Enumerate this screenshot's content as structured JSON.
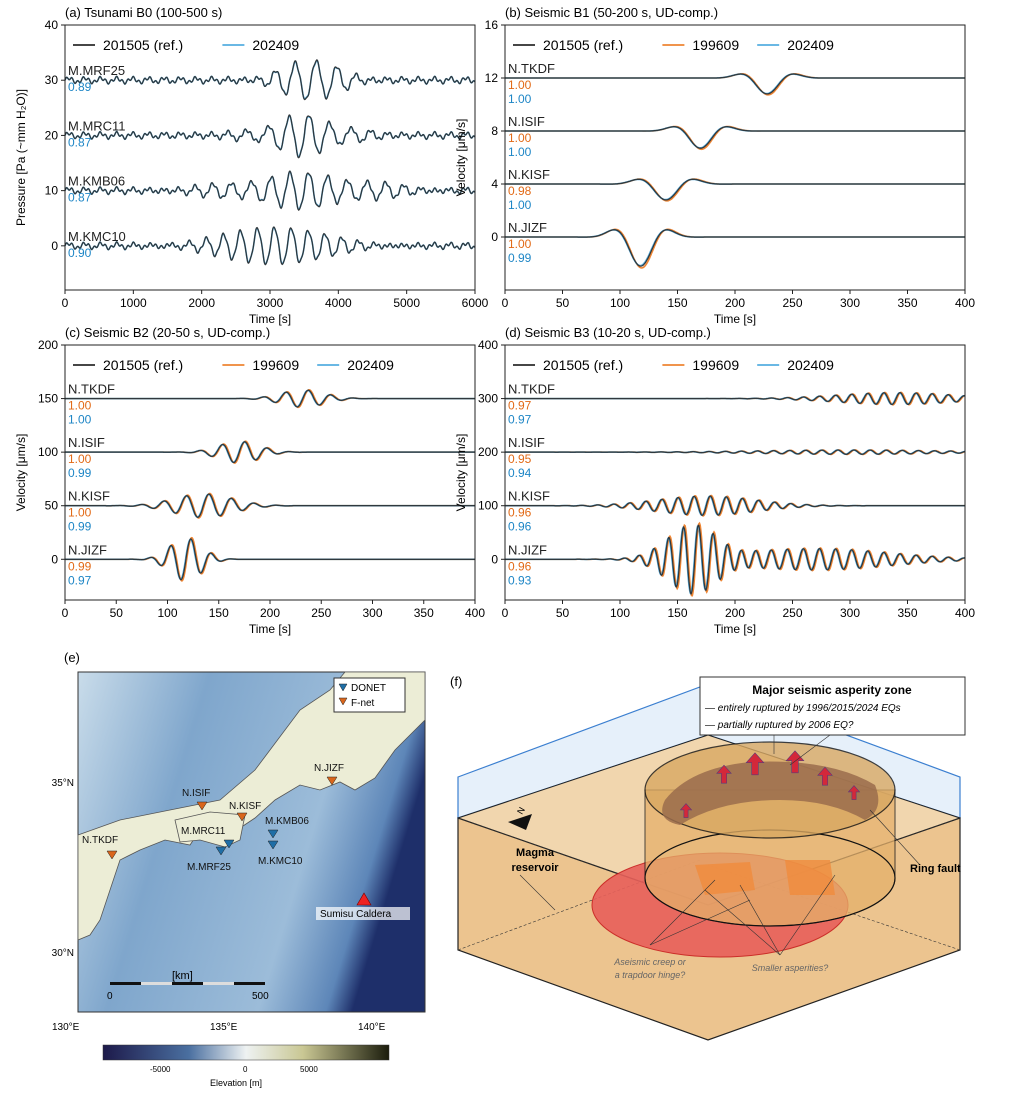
{
  "colors": {
    "ref": "#2b2b2b",
    "c199609": "#ee8533",
    "c202409": "#55aee0",
    "cc_orange": "#e26a17",
    "cc_blue": "#1e86c6"
  },
  "chart_data": [
    {
      "id": "a",
      "type": "line",
      "title": "(a) Tsunami B0 (100-500 s)",
      "xlabel": "Time [s]",
      "ylabel": "Pressure [Pa (~mm H₂O)]",
      "xlim": [
        0,
        6000
      ],
      "ylim": [
        -8,
        40
      ],
      "xticks": [
        0,
        1000,
        2000,
        3000,
        4000,
        5000,
        6000
      ],
      "yticks": [
        0,
        10,
        20,
        30,
        40
      ],
      "legend": [
        "201505 (ref.)",
        "202409"
      ],
      "legend_colors": [
        "ref",
        "c202409"
      ],
      "traces": [
        {
          "station": "M.MRF25",
          "offset": 30,
          "cc": [
            "0.89"
          ],
          "packets": [
            [
              3600,
              4,
              300,
              500
            ]
          ]
        },
        {
          "station": "M.MRC11",
          "offset": 20,
          "cc": [
            "0.87"
          ],
          "packets": [
            [
              3500,
              3.5,
              300,
              700
            ]
          ]
        },
        {
          "station": "M.KMB06",
          "offset": 10,
          "cc": [
            "0.87"
          ],
          "packets": [
            [
              3500,
              3,
              280,
              1200
            ]
          ]
        },
        {
          "station": "M.KMC10",
          "offset": 0,
          "cc": [
            "0.90"
          ],
          "packets": [
            [
              3000,
              3,
              250,
              1200
            ]
          ]
        }
      ]
    },
    {
      "id": "b",
      "type": "line",
      "title": "(b) Seismic B1 (50-200 s, UD-comp.)",
      "xlabel": "Time [s]",
      "ylabel": "Velocity [μm/s]",
      "xlim": [
        0,
        400
      ],
      "ylim": [
        -4,
        16
      ],
      "xticks": [
        0,
        50,
        100,
        150,
        200,
        250,
        300,
        350,
        400
      ],
      "yticks": [
        0,
        4,
        8,
        12,
        16
      ],
      "legend": [
        "201505 (ref.)",
        "199609",
        "202409"
      ],
      "legend_colors": [
        "ref",
        "c199609",
        "c202409"
      ],
      "traces": [
        {
          "station": "N.TKDF",
          "offset": 12,
          "cc": [
            "1.00",
            "1.00"
          ],
          "packets": [
            [
              228,
              -1.2,
              60,
              22
            ]
          ]
        },
        {
          "station": "N.ISIF",
          "offset": 8,
          "cc": [
            "1.00",
            "1.00"
          ],
          "packets": [
            [
              170,
              -1.3,
              60,
              22
            ]
          ]
        },
        {
          "station": "N.KISF",
          "offset": 4,
          "cc": [
            "0.98",
            "1.00"
          ],
          "packets": [
            [
              140,
              -1.2,
              60,
              24
            ]
          ]
        },
        {
          "station": "N.JIZF",
          "offset": 0,
          "cc": [
            "1.00",
            "0.99"
          ],
          "packets": [
            [
              118,
              -2.2,
              60,
              22
            ]
          ]
        }
      ]
    },
    {
      "id": "c",
      "type": "line",
      "title": "(c) Seismic B2 (20-50 s, UD-comp.)",
      "xlabel": "Time [s]",
      "ylabel": "Velocity [μm/s]",
      "xlim": [
        0,
        400
      ],
      "ylim": [
        -38,
        200
      ],
      "xticks": [
        0,
        50,
        100,
        150,
        200,
        250,
        300,
        350,
        400
      ],
      "yticks": [
        0,
        50,
        100,
        150,
        200
      ],
      "legend": [
        "201505 (ref.)",
        "199609",
        "202409"
      ],
      "legend_colors": [
        "ref",
        "c199609",
        "c202409"
      ],
      "traces": [
        {
          "station": "N.TKDF",
          "offset": 150,
          "cc": [
            "1.00",
            "1.00"
          ],
          "packets": [
            [
              232,
              8,
              22,
              30
            ]
          ]
        },
        {
          "station": "N.ISIF",
          "offset": 100,
          "cc": [
            "1.00",
            "0.99"
          ],
          "packets": [
            [
              170,
              10,
              22,
              28
            ]
          ]
        },
        {
          "station": "N.KISF",
          "offset": 50,
          "cc": [
            "1.00",
            "0.99"
          ],
          "packets": [
            [
              135,
              11,
              22,
              40
            ]
          ]
        },
        {
          "station": "N.JIZF",
          "offset": 0,
          "cc": [
            "0.99",
            "0.97"
          ],
          "packets": [
            [
              118,
              20,
              20,
              22
            ]
          ]
        }
      ]
    },
    {
      "id": "d",
      "type": "line",
      "title": "(d) Seismic B3 (10-20 s, UD-comp.)",
      "xlabel": "Time [s]",
      "ylabel": "Velocity [μm/s]",
      "xlim": [
        0,
        400
      ],
      "ylim": [
        -76,
        400
      ],
      "xticks": [
        0,
        50,
        100,
        150,
        200,
        250,
        300,
        350,
        400
      ],
      "yticks": [
        0,
        100,
        200,
        300,
        400
      ],
      "legend": [
        "201505 (ref.)",
        "199609",
        "202409"
      ],
      "legend_colors": [
        "ref",
        "c199609",
        "c202409"
      ],
      "traces": [
        {
          "station": "N.TKDF",
          "offset": 300,
          "cc": [
            "0.97",
            "0.97"
          ],
          "packets": [
            [
              340,
              11,
              14,
              70
            ]
          ]
        },
        {
          "station": "N.ISIF",
          "offset": 200,
          "cc": [
            "0.95",
            "0.94"
          ],
          "packets": [
            [
              300,
              4,
              14,
              110
            ]
          ]
        },
        {
          "station": "N.KISF",
          "offset": 100,
          "cc": [
            "0.96",
            "0.96"
          ],
          "packets": [
            [
              175,
              18,
              14,
              60
            ]
          ]
        },
        {
          "station": "N.JIZF",
          "offset": 0,
          "cc": [
            "0.96",
            "0.93"
          ],
          "packets": [
            [
              165,
              70,
              13,
              32
            ],
            [
              270,
              20,
              14,
              90
            ]
          ]
        }
      ]
    }
  ],
  "map": {
    "label": "(e)",
    "legend": [
      "DONET",
      "F-net"
    ],
    "stations": [
      "N.TKDF",
      "N.ISIF",
      "N.KISF",
      "N.JIZF",
      "M.MRC11",
      "M.MRF25",
      "M.KMB06",
      "M.KMC10"
    ],
    "volcano": "Sumisu Caldera",
    "scale_unit": "[km]",
    "scale_ticks": [
      "0",
      "500"
    ],
    "lon_ticks": [
      "130°E",
      "135°E",
      "140°E"
    ],
    "lat_ticks": [
      "35°N",
      "30°N"
    ],
    "colorbar_ticks": [
      "-5000",
      "0",
      "5000"
    ],
    "colorbar_label": "Elevation [m]"
  },
  "diagram": {
    "label": "(f)",
    "box_title": "Major seismic asperity zone",
    "box_line1": "— entirely ruptured by 1996/2015/2024 EQs",
    "box_line2": "— partially ruptured by 2006 EQ?",
    "magma1": "Magma",
    "magma2": "reservoir",
    "ring": "Ring fault",
    "creep1": "Aseismic creep or",
    "creep2": "a trapdoor hinge?",
    "smaller": "Smaller asperities?",
    "north": "N"
  }
}
